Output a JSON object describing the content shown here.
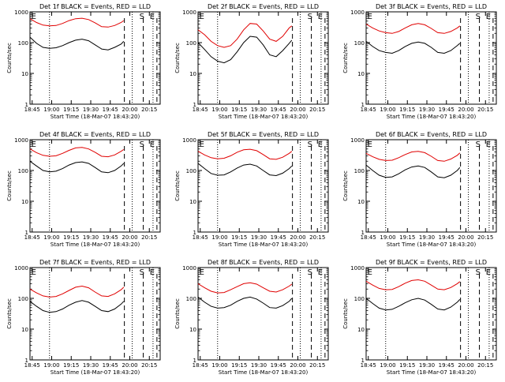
{
  "chart_data": [
    {
      "type": "line",
      "title": "Det 1f BLACK = Events, RED = LLD",
      "xlabel": "Start Time (18-Mar-07 18:43:20)",
      "ylabel": "Counts/sec",
      "y_scale": "log",
      "ylim": [
        1,
        1000
      ],
      "y_ticks": [
        "1",
        "10",
        "100",
        "1000"
      ],
      "x_ticks": [
        "18:45",
        "19:00",
        "19:15",
        "19:30",
        "19:45",
        "20:00",
        "20:15"
      ],
      "xlim_minutes": [
        0,
        100
      ],
      "markers": [
        {
          "label": "E",
          "x": 1
        },
        {
          "label": "S",
          "x": 84
        },
        {
          "label": "E",
          "x": 92
        }
      ],
      "dotted_x": [
        15,
        78.5,
        94.5
      ],
      "dashed_x": [
        72.5,
        87,
        97.5
      ],
      "series": [
        {
          "name": "RED",
          "color": "#e00000",
          "x": [
            0,
            5,
            10,
            15,
            20,
            25,
            30,
            35,
            40,
            45,
            50,
            55,
            60,
            65,
            70,
            72
          ],
          "y": [
            600,
            450,
            370,
            350,
            360,
            420,
            520,
            600,
            620,
            560,
            440,
            330,
            320,
            360,
            450,
            520
          ]
        },
        {
          "name": "BLACK",
          "color": "#000000",
          "x": [
            0,
            5,
            10,
            15,
            20,
            25,
            30,
            35,
            40,
            45,
            50,
            55,
            60,
            65,
            70,
            72
          ],
          "y": [
            150,
            95,
            70,
            65,
            68,
            80,
            100,
            120,
            130,
            115,
            85,
            62,
            58,
            70,
            90,
            110
          ]
        }
      ]
    },
    {
      "type": "line",
      "title": "Det 2f BLACK = Events, RED = LLD",
      "xlabel": "Start Time (18-Mar-07 18:43:20)",
      "ylabel": "Counts/sec",
      "y_scale": "log",
      "ylim": [
        1,
        1000
      ],
      "y_ticks": [
        "1",
        "10",
        "100",
        "1000"
      ],
      "x_ticks": [
        "18:45",
        "19:00",
        "19:15",
        "19:30",
        "19:45",
        "20:00",
        "20:15"
      ],
      "xlim_minutes": [
        0,
        100
      ],
      "markers": [
        {
          "label": "E",
          "x": 1
        },
        {
          "label": "S",
          "x": 84
        },
        {
          "label": "E",
          "x": 92
        }
      ],
      "dotted_x": [
        15,
        78.5,
        94.5
      ],
      "dashed_x": [
        72.5,
        87,
        97.5
      ],
      "series": [
        {
          "name": "RED",
          "color": "#e00000",
          "x": [
            0,
            5,
            10,
            15,
            20,
            25,
            30,
            35,
            40,
            45,
            50,
            55,
            60,
            65,
            70,
            72
          ],
          "y": [
            260,
            180,
            110,
            80,
            70,
            80,
            130,
            260,
            420,
            400,
            240,
            130,
            110,
            160,
            300,
            350
          ]
        },
        {
          "name": "BLACK",
          "color": "#000000",
          "x": [
            0,
            5,
            10,
            15,
            20,
            25,
            30,
            35,
            40,
            45,
            50,
            55,
            60,
            65,
            70,
            72
          ],
          "y": [
            100,
            60,
            35,
            25,
            22,
            28,
            50,
            100,
            160,
            150,
            85,
            40,
            35,
            55,
            95,
            120
          ]
        }
      ]
    },
    {
      "type": "line",
      "title": "Det 3f BLACK = Events, RED = LLD",
      "xlabel": "Start Time (18-Mar-07 18:43:20)",
      "ylabel": "Counts/sec",
      "y_scale": "log",
      "ylim": [
        1,
        1000
      ],
      "y_ticks": [
        "1",
        "10",
        "100",
        "1000"
      ],
      "x_ticks": [
        "18:45",
        "19:00",
        "19:15",
        "19:30",
        "19:45",
        "20:00",
        "20:15"
      ],
      "xlim_minutes": [
        0,
        100
      ],
      "markers": [
        {
          "label": "E",
          "x": 1
        },
        {
          "label": "S",
          "x": 84
        },
        {
          "label": "E",
          "x": 92
        }
      ],
      "dotted_x": [
        15,
        78.5,
        94.5
      ],
      "dashed_x": [
        72.5,
        87,
        97.5
      ],
      "series": [
        {
          "name": "RED",
          "color": "#e00000",
          "x": [
            0,
            5,
            10,
            15,
            20,
            25,
            30,
            35,
            40,
            45,
            50,
            55,
            60,
            65,
            70,
            72
          ],
          "y": [
            400,
            300,
            240,
            210,
            200,
            230,
            300,
            380,
            420,
            380,
            290,
            210,
            200,
            230,
            300,
            350
          ]
        },
        {
          "name": "BLACK",
          "color": "#000000",
          "x": [
            0,
            5,
            10,
            15,
            20,
            25,
            30,
            35,
            40,
            45,
            50,
            55,
            60,
            65,
            70,
            72
          ],
          "y": [
            110,
            75,
            55,
            48,
            45,
            55,
            75,
            95,
            105,
            95,
            70,
            48,
            45,
            55,
            80,
            95
          ]
        }
      ]
    },
    {
      "type": "line",
      "title": "Det 4f BLACK = Events, RED = LLD",
      "xlabel": "Start Time (18-Mar-07 18:43:20)",
      "ylabel": "Counts/sec",
      "y_scale": "log",
      "ylim": [
        1,
        1000
      ],
      "y_ticks": [
        "1",
        "10",
        "100",
        "1000"
      ],
      "x_ticks": [
        "18:45",
        "19:00",
        "19:15",
        "19:30",
        "19:45",
        "20:00",
        "20:15"
      ],
      "xlim_minutes": [
        0,
        100
      ],
      "markers": [
        {
          "label": "E",
          "x": 1
        },
        {
          "label": "S",
          "x": 84
        },
        {
          "label": "E",
          "x": 92
        }
      ],
      "dotted_x": [
        15,
        78.5,
        94.5
      ],
      "dashed_x": [
        72.5,
        87,
        97.5
      ],
      "series": [
        {
          "name": "RED",
          "color": "#e00000",
          "x": [
            0,
            5,
            10,
            15,
            20,
            25,
            30,
            35,
            40,
            45,
            50,
            55,
            60,
            65,
            70,
            72
          ],
          "y": [
            500,
            380,
            310,
            290,
            300,
            360,
            450,
            540,
            560,
            500,
            390,
            290,
            280,
            320,
            420,
            480
          ]
        },
        {
          "name": "BLACK",
          "color": "#000000",
          "x": [
            0,
            5,
            10,
            15,
            20,
            25,
            30,
            35,
            40,
            45,
            50,
            55,
            60,
            65,
            70,
            72
          ],
          "y": [
            200,
            140,
            100,
            90,
            95,
            115,
            150,
            180,
            190,
            170,
            125,
            90,
            85,
            100,
            140,
            170
          ]
        }
      ]
    },
    {
      "type": "line",
      "title": "Det 5f BLACK = Events, RED = LLD",
      "xlabel": "Start Time (18-Mar-07 18:43:20)",
      "ylabel": "Counts/sec",
      "y_scale": "log",
      "ylim": [
        1,
        1000
      ],
      "y_ticks": [
        "1",
        "10",
        "100",
        "1000"
      ],
      "x_ticks": [
        "18:45",
        "19:00",
        "19:15",
        "19:30",
        "19:45",
        "20:00",
        "20:15"
      ],
      "xlim_minutes": [
        0,
        100
      ],
      "markers": [
        {
          "label": "E",
          "x": 1
        },
        {
          "label": "S",
          "x": 84
        },
        {
          "label": "E",
          "x": 92
        }
      ],
      "dotted_x": [
        15,
        78.5,
        94.5
      ],
      "dashed_x": [
        72.5,
        87,
        97.5
      ],
      "series": [
        {
          "name": "RED",
          "color": "#e00000",
          "x": [
            0,
            5,
            10,
            15,
            20,
            25,
            30,
            35,
            40,
            45,
            50,
            55,
            60,
            65,
            70,
            72
          ],
          "y": [
            420,
            320,
            260,
            240,
            250,
            300,
            390,
            470,
            490,
            440,
            330,
            240,
            230,
            270,
            360,
            420
          ]
        },
        {
          "name": "BLACK",
          "color": "#000000",
          "x": [
            0,
            5,
            10,
            15,
            20,
            25,
            30,
            35,
            40,
            45,
            50,
            55,
            60,
            65,
            70,
            72
          ],
          "y": [
            170,
            115,
            80,
            70,
            72,
            90,
            120,
            150,
            160,
            140,
            100,
            72,
            68,
            82,
            115,
            140
          ]
        }
      ]
    },
    {
      "type": "line",
      "title": "Det 6f BLACK = Events, RED = LLD",
      "xlabel": "Start Time (18-Mar-07 18:43:20)",
      "ylabel": "Counts/sec",
      "y_scale": "log",
      "ylim": [
        1,
        1000
      ],
      "y_ticks": [
        "1",
        "10",
        "100",
        "1000"
      ],
      "x_ticks": [
        "18:45",
        "19:00",
        "19:15",
        "19:30",
        "19:45",
        "20:00",
        "20:15"
      ],
      "xlim_minutes": [
        0,
        100
      ],
      "markers": [
        {
          "label": "E",
          "x": 1
        },
        {
          "label": "S",
          "x": 84
        },
        {
          "label": "E",
          "x": 92
        }
      ],
      "dotted_x": [
        15,
        78.5,
        94.5
      ],
      "dashed_x": [
        72.5,
        87,
        97.5
      ],
      "series": [
        {
          "name": "RED",
          "color": "#e00000",
          "x": [
            0,
            5,
            10,
            15,
            20,
            25,
            30,
            35,
            40,
            45,
            50,
            55,
            60,
            65,
            70,
            72
          ],
          "y": [
            360,
            280,
            230,
            210,
            215,
            260,
            330,
            400,
            420,
            380,
            290,
            210,
            200,
            235,
            310,
            370
          ]
        },
        {
          "name": "BLACK",
          "color": "#000000",
          "x": [
            0,
            5,
            10,
            15,
            20,
            25,
            30,
            35,
            40,
            45,
            50,
            55,
            60,
            65,
            70,
            72
          ],
          "y": [
            150,
            100,
            70,
            60,
            62,
            78,
            105,
            130,
            140,
            125,
            90,
            62,
            58,
            70,
            100,
            125
          ]
        }
      ]
    },
    {
      "type": "line",
      "title": "Det 7f BLACK = Events, RED = LLD",
      "xlabel": "Start Time (18-Mar-07 18:43:20)",
      "ylabel": "Counts/sec",
      "y_scale": "log",
      "ylim": [
        1,
        1000
      ],
      "y_ticks": [
        "1",
        "10",
        "100",
        "1000"
      ],
      "x_ticks": [
        "18:45",
        "19:00",
        "19:15",
        "19:30",
        "19:45",
        "20:00",
        "20:15"
      ],
      "xlim_minutes": [
        0,
        100
      ],
      "markers": [
        {
          "label": "E",
          "x": 1
        },
        {
          "label": "S",
          "x": 84
        },
        {
          "label": "E",
          "x": 92
        }
      ],
      "dotted_x": [
        15,
        78.5,
        94.5
      ],
      "dashed_x": [
        72.5,
        87,
        97.5
      ],
      "series": [
        {
          "name": "RED",
          "color": "#e00000",
          "x": [
            0,
            5,
            10,
            15,
            20,
            25,
            30,
            35,
            40,
            45,
            50,
            55,
            60,
            65,
            70,
            72
          ],
          "y": [
            200,
            150,
            120,
            110,
            115,
            140,
            180,
            230,
            250,
            220,
            160,
            120,
            115,
            140,
            190,
            230
          ]
        },
        {
          "name": "BLACK",
          "color": "#000000",
          "x": [
            0,
            5,
            10,
            15,
            20,
            25,
            30,
            35,
            40,
            45,
            50,
            55,
            60,
            65,
            70,
            72
          ],
          "y": [
            80,
            55,
            40,
            35,
            37,
            45,
            60,
            75,
            85,
            75,
            55,
            40,
            37,
            45,
            65,
            80
          ]
        }
      ]
    },
    {
      "type": "line",
      "title": "Det 8f BLACK = Events, RED = LLD",
      "xlabel": "Start Time (18-Mar-07 18:43:20)",
      "ylabel": "Counts/sec",
      "y_scale": "log",
      "ylim": [
        1,
        1000
      ],
      "y_ticks": [
        "1",
        "10",
        "100",
        "1000"
      ],
      "x_ticks": [
        "18:45",
        "19:00",
        "19:15",
        "19:30",
        "19:45",
        "20:00",
        "20:15"
      ],
      "xlim_minutes": [
        0,
        100
      ],
      "markers": [
        {
          "label": "E",
          "x": 1
        },
        {
          "label": "S",
          "x": 84
        },
        {
          "label": "E",
          "x": 92
        }
      ],
      "dotted_x": [
        15,
        78.5,
        94.5
      ],
      "dashed_x": [
        72.5,
        87,
        97.5
      ],
      "series": [
        {
          "name": "RED",
          "color": "#e00000",
          "x": [
            0,
            5,
            10,
            15,
            20,
            25,
            30,
            35,
            40,
            45,
            50,
            55,
            60,
            65,
            70,
            72
          ],
          "y": [
            300,
            220,
            170,
            150,
            155,
            190,
            240,
            300,
            320,
            290,
            220,
            170,
            160,
            190,
            250,
            290
          ]
        },
        {
          "name": "BLACK",
          "color": "#000000",
          "x": [
            0,
            5,
            10,
            15,
            20,
            25,
            30,
            35,
            40,
            45,
            50,
            55,
            60,
            65,
            70,
            72
          ],
          "y": [
            110,
            75,
            55,
            48,
            50,
            60,
            80,
            100,
            110,
            95,
            70,
            50,
            48,
            58,
            80,
            100
          ]
        }
      ]
    },
    {
      "type": "line",
      "title": "Det 9f BLACK = Events, RED = LLD",
      "xlabel": "Start Time (18-Mar-07 18:43:20)",
      "ylabel": "Counts/sec",
      "y_scale": "log",
      "ylim": [
        1,
        1000
      ],
      "y_ticks": [
        "1",
        "10",
        "100",
        "1000"
      ],
      "x_ticks": [
        "18:45",
        "19:00",
        "19:15",
        "19:30",
        "19:45",
        "20:00",
        "20:15"
      ],
      "xlim_minutes": [
        0,
        100
      ],
      "markers": [
        {
          "label": "E",
          "x": 1
        },
        {
          "label": "S",
          "x": 84
        },
        {
          "label": "E",
          "x": 92
        }
      ],
      "dotted_x": [
        15,
        78.5,
        94.5
      ],
      "dashed_x": [
        72.5,
        87,
        97.5
      ],
      "series": [
        {
          "name": "RED",
          "color": "#e00000",
          "x": [
            0,
            5,
            10,
            15,
            20,
            25,
            30,
            35,
            40,
            45,
            50,
            55,
            60,
            65,
            70,
            72
          ],
          "y": [
            360,
            270,
            210,
            190,
            195,
            240,
            310,
            380,
            400,
            360,
            270,
            200,
            190,
            225,
            300,
            350
          ]
        },
        {
          "name": "BLACK",
          "color": "#000000",
          "x": [
            0,
            5,
            10,
            15,
            20,
            25,
            30,
            35,
            40,
            45,
            50,
            55,
            60,
            65,
            70,
            72
          ],
          "y": [
            100,
            68,
            48,
            42,
            44,
            55,
            72,
            90,
            100,
            88,
            64,
            45,
            42,
            52,
            75,
            92
          ]
        }
      ]
    }
  ]
}
